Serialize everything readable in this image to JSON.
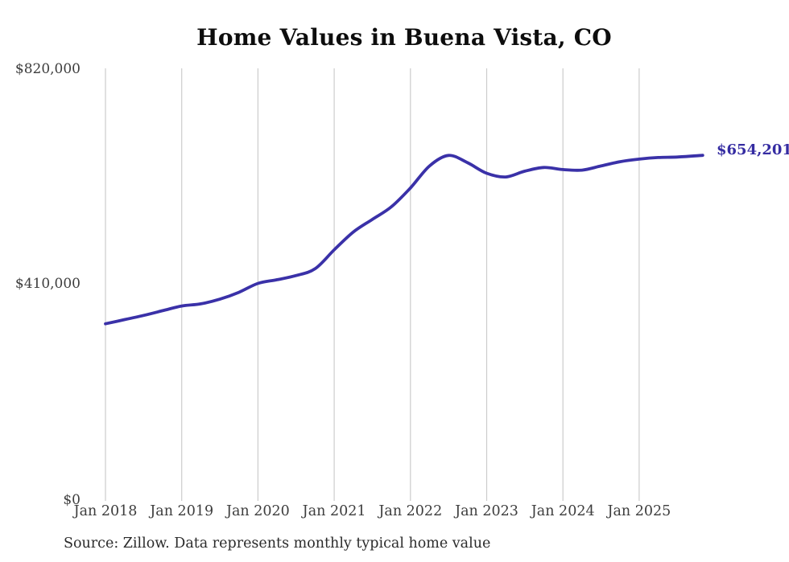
{
  "title": "Home Values in Buena Vista, CO",
  "source_note": "Source: Zillow. Data represents monthly typical home value",
  "colors": {
    "line": "#3a31a8",
    "value_label": "#352ca2",
    "gridline": "#cccccc",
    "axis_text": "#3d3d3d",
    "title_text": "#0d0d0d",
    "source_text": "#2b2b2b",
    "background": "#ffffff"
  },
  "chart_data": {
    "type": "line",
    "title": "Home Values in Buena Vista, CO",
    "series_name": "Monthly typical home value",
    "unit": "USD",
    "x_tick_labels": [
      "Jan 2018",
      "Jan 2019",
      "Jan 2020",
      "Jan 2021",
      "Jan 2022",
      "Jan 2023",
      "Jan 2024",
      "Jan 2025"
    ],
    "y_tick_labels": [
      "$820,000",
      "$410,000",
      "$0"
    ],
    "ylim": [
      0,
      820000
    ],
    "y_ticks": [
      820000,
      410000,
      0
    ],
    "grid": "vertical",
    "legend": "none",
    "latest_value": 654201,
    "latest_value_label": "$654,201",
    "points": [
      [
        "2018-01",
        333000
      ],
      [
        "2018-04",
        341000
      ],
      [
        "2018-07",
        349000
      ],
      [
        "2018-10",
        358000
      ],
      [
        "2019-01",
        367000
      ],
      [
        "2019-04",
        371000
      ],
      [
        "2019-07",
        380000
      ],
      [
        "2019-10",
        393000
      ],
      [
        "2020-01",
        410000
      ],
      [
        "2020-04",
        417000
      ],
      [
        "2020-07",
        425000
      ],
      [
        "2020-10",
        438000
      ],
      [
        "2021-01",
        474000
      ],
      [
        "2021-04",
        508000
      ],
      [
        "2021-07",
        532000
      ],
      [
        "2021-10",
        556000
      ],
      [
        "2022-01",
        592000
      ],
      [
        "2022-04",
        634000
      ],
      [
        "2022-07",
        654000
      ],
      [
        "2022-10",
        640000
      ],
      [
        "2023-01",
        620000
      ],
      [
        "2023-04",
        613000
      ],
      [
        "2023-07",
        624000
      ],
      [
        "2023-10",
        631000
      ],
      [
        "2024-01",
        627000
      ],
      [
        "2024-04",
        626000
      ],
      [
        "2024-07",
        634000
      ],
      [
        "2024-10",
        642000
      ],
      [
        "2025-01",
        647000
      ],
      [
        "2025-04",
        650000
      ],
      [
        "2025-07",
        651000
      ],
      [
        "2025-11",
        654201
      ]
    ]
  }
}
